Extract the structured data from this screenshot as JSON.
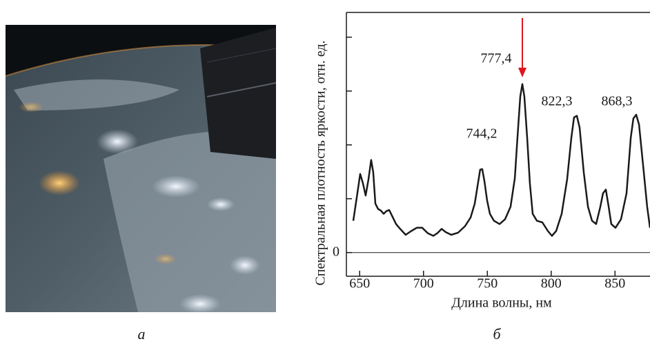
{
  "photo_caption": "а",
  "chart_data": {
    "type": "line",
    "caption": "б",
    "x_label": "Длина волны, нм",
    "y_label": "Спектральная плотность яркости, отн. ед.",
    "annotations": [
      "744,2",
      "777,4",
      "822,3",
      "868,3"
    ],
    "xlim": [
      639.6,
      877.4
    ],
    "xticks": [
      650,
      700,
      750,
      800,
      850
    ],
    "ylim": [
      -0.44,
      4.46
    ],
    "yticks": [
      0,
      {
        "value": 1,
        "label": null
      },
      {
        "value": 2,
        "label": null
      },
      {
        "value": 3,
        "label": null
      },
      {
        "value": 4,
        "label": null
      }
    ],
    "series": [
      {
        "color": "#1a1a1a",
        "x": [
          645.0,
          648.2,
          650.4,
          652.5,
          654.7,
          656.9,
          659.0,
          660.6,
          662.3,
          664.4,
          666.6,
          668.8,
          670.9,
          673.1,
          675.2,
          678.5,
          681.7,
          686.0,
          690.4,
          694.7,
          699.0,
          703.3,
          707.7,
          710.9,
          714.2,
          717.4,
          721.7,
          727.1,
          732.5,
          736.9,
          740.1,
          742.3,
          744.4,
          746.0,
          747.7,
          749.8,
          752.0,
          755.2,
          759.6,
          763.9,
          768.2,
          771.5,
          773.6,
          775.8,
          777.4,
          779.0,
          781.2,
          783.3,
          785.5,
          788.8,
          793.1,
          797.4,
          800.6,
          803.9,
          808.2,
          812.5,
          815.8,
          817.9,
          820.1,
          822.3,
          825.5,
          828.8,
          832.0,
          835.2,
          838.5,
          840.6,
          842.8,
          845.0,
          847.1,
          850.4,
          854.7,
          859.0,
          862.3,
          864.4,
          866.6,
          868.8,
          872.0,
          875.2,
          877.4
        ],
        "values": [
          0.59,
          1.1,
          1.46,
          1.29,
          1.06,
          1.36,
          1.72,
          1.49,
          0.91,
          0.81,
          0.78,
          0.72,
          0.77,
          0.79,
          0.69,
          0.53,
          0.44,
          0.33,
          0.4,
          0.46,
          0.46,
          0.36,
          0.31,
          0.36,
          0.44,
          0.38,
          0.33,
          0.37,
          0.49,
          0.65,
          0.91,
          1.23,
          1.54,
          1.55,
          1.33,
          0.97,
          0.72,
          0.59,
          0.53,
          0.62,
          0.85,
          1.38,
          2.13,
          2.9,
          3.13,
          2.9,
          2.13,
          1.29,
          0.72,
          0.59,
          0.56,
          0.4,
          0.31,
          0.4,
          0.72,
          1.36,
          2.13,
          2.51,
          2.54,
          2.32,
          1.49,
          0.85,
          0.59,
          0.53,
          0.85,
          1.1,
          1.17,
          0.85,
          0.53,
          0.46,
          0.62,
          1.1,
          2.13,
          2.49,
          2.56,
          2.38,
          1.62,
          0.85,
          0.46
        ]
      }
    ]
  }
}
